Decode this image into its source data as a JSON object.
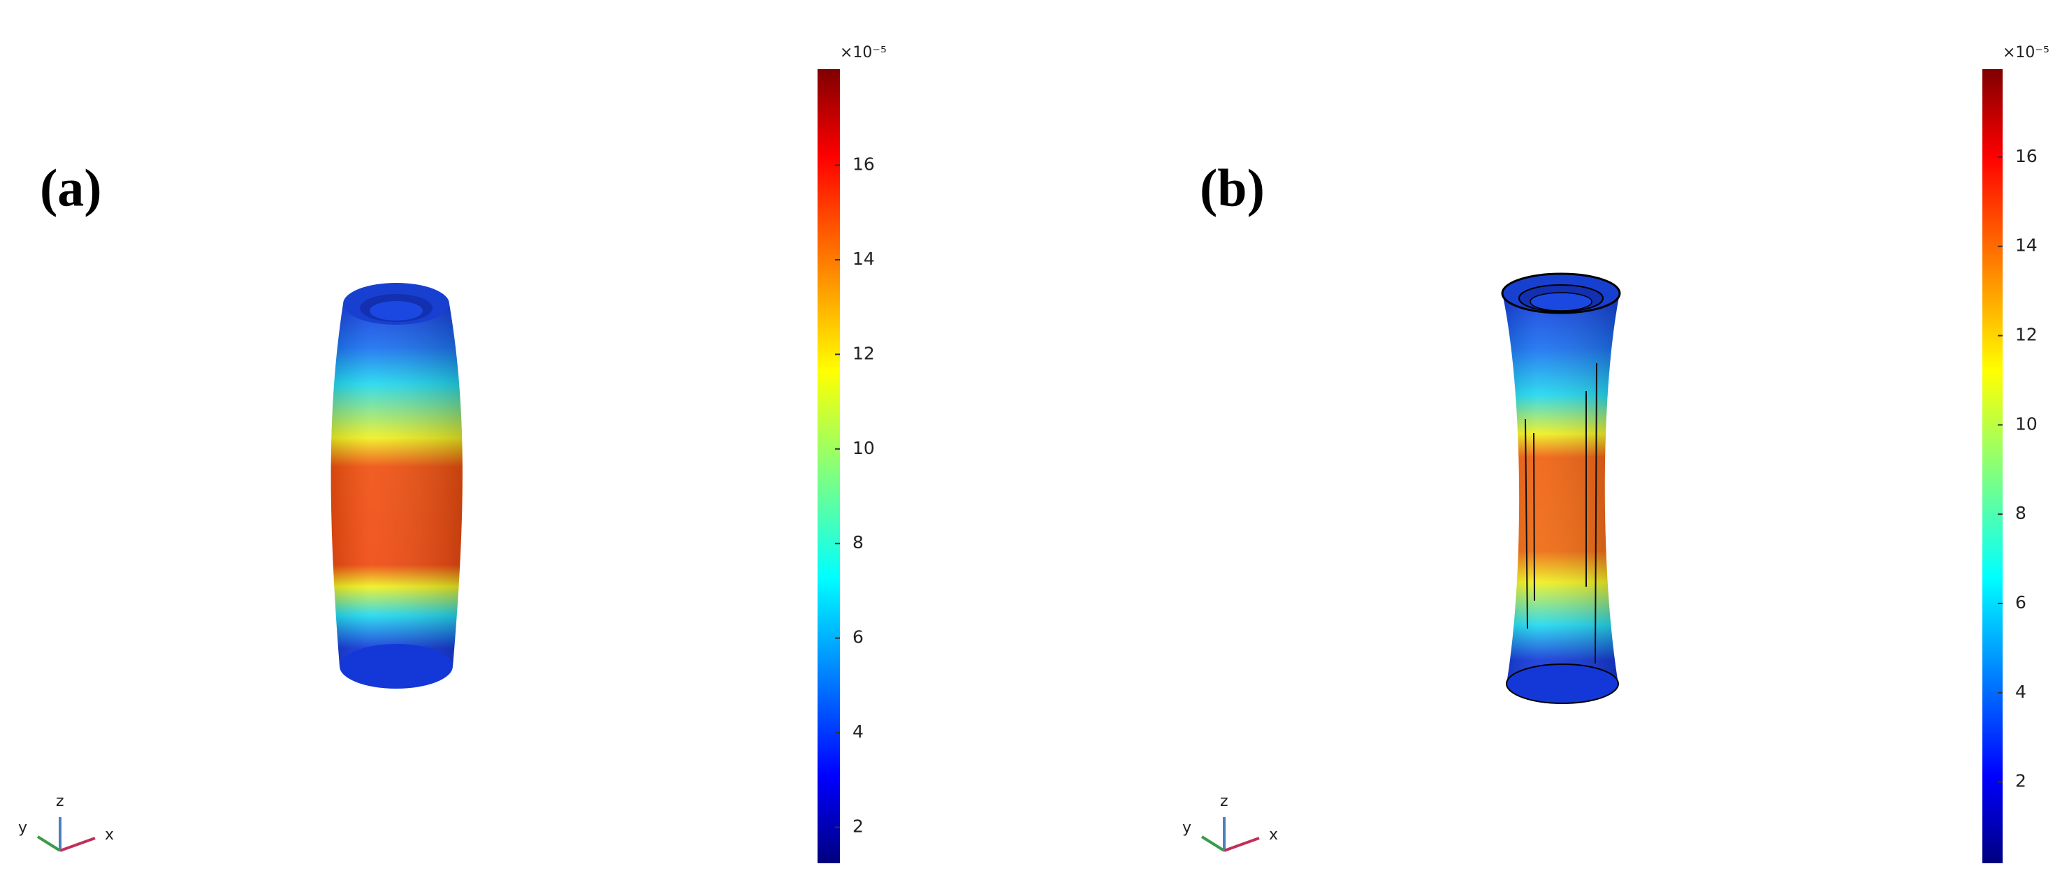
{
  "panels": [
    {
      "label": "(a)",
      "colorbar": {
        "multiplier": "×10⁻⁵",
        "lim": [
          1.24,
          18.03
        ],
        "ticks": [
          2,
          4,
          6,
          8,
          10,
          12,
          14,
          16
        ]
      },
      "axes": {
        "x": "x",
        "y": "y",
        "z": "z"
      }
    },
    {
      "label": "(b)",
      "colorbar": {
        "multiplier": "×10⁻⁵",
        "lim": [
          0.18,
          17.97
        ],
        "ticks": [
          2,
          4,
          6,
          8,
          10,
          12,
          14,
          16
        ]
      },
      "axes": {
        "x": "x",
        "y": "y",
        "z": "z"
      }
    }
  ]
}
